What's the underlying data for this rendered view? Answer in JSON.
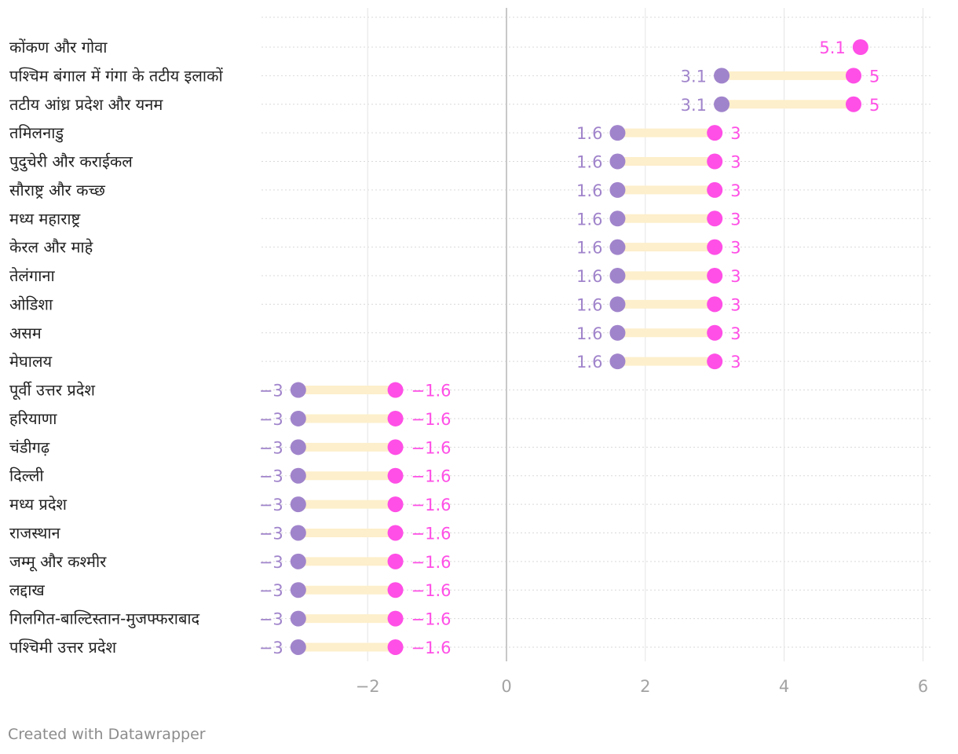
{
  "chart_data": {
    "type": "range-dot",
    "title": "",
    "xlabel": "",
    "ylabel": "",
    "xlim": [
      -3.5,
      6.1
    ],
    "xticks": [
      -2,
      0,
      2,
      4,
      6
    ],
    "xtick_labels": [
      "−2",
      "0",
      "2",
      "4",
      "6"
    ],
    "series": [
      {
        "name": "low",
        "color": "#a084cb"
      },
      {
        "name": "high",
        "color": "#ff4fe6"
      }
    ],
    "bar_color": "#fdefcb",
    "rows": [
      {
        "label": "कोंकण और गोवा",
        "low": null,
        "high": 5.1,
        "low_label": "",
        "high_label": "5.1"
      },
      {
        "label": "पश्चिम बंगाल में गंगा के तटीय इलाकों",
        "low": 3.1,
        "high": 5,
        "low_label": "3.1",
        "high_label": "5"
      },
      {
        "label": "तटीय आंध्र प्रदेश और यनम",
        "low": 3.1,
        "high": 5,
        "low_label": "3.1",
        "high_label": "5"
      },
      {
        "label": "तमिलनाडु",
        "low": 1.6,
        "high": 3,
        "low_label": "1.6",
        "high_label": "3"
      },
      {
        "label": "पुदुचेरी और कराईकल",
        "low": 1.6,
        "high": 3,
        "low_label": "1.6",
        "high_label": "3"
      },
      {
        "label": "सौराष्ट्र और कच्छ",
        "low": 1.6,
        "high": 3,
        "low_label": "1.6",
        "high_label": "3"
      },
      {
        "label": "मध्य महाराष्ट्र",
        "low": 1.6,
        "high": 3,
        "low_label": "1.6",
        "high_label": "3"
      },
      {
        "label": "केरल और माहे",
        "low": 1.6,
        "high": 3,
        "low_label": "1.6",
        "high_label": "3"
      },
      {
        "label": "तेलंगाना",
        "low": 1.6,
        "high": 3,
        "low_label": "1.6",
        "high_label": "3"
      },
      {
        "label": "ओडिशा",
        "low": 1.6,
        "high": 3,
        "low_label": "1.6",
        "high_label": "3"
      },
      {
        "label": "असम",
        "low": 1.6,
        "high": 3,
        "low_label": "1.6",
        "high_label": "3"
      },
      {
        "label": "मेघालय",
        "low": 1.6,
        "high": 3,
        "low_label": "1.6",
        "high_label": "3"
      },
      {
        "label": "पूर्वी उत्तर प्रदेश",
        "low": -3,
        "high": -1.6,
        "low_label": "−3",
        "high_label": "−1.6"
      },
      {
        "label": "हरियाणा",
        "low": -3,
        "high": -1.6,
        "low_label": "−3",
        "high_label": "−1.6"
      },
      {
        "label": "चंडीगढ़",
        "low": -3,
        "high": -1.6,
        "low_label": "−3",
        "high_label": "−1.6"
      },
      {
        "label": "दिल्ली",
        "low": -3,
        "high": -1.6,
        "low_label": "−3",
        "high_label": "−1.6"
      },
      {
        "label": "मध्य प्रदेश",
        "low": -3,
        "high": -1.6,
        "low_label": "−3",
        "high_label": "−1.6"
      },
      {
        "label": "राजस्थान",
        "low": -3,
        "high": -1.6,
        "low_label": "−3",
        "high_label": "−1.6"
      },
      {
        "label": "जम्मू और कश्मीर",
        "low": -3,
        "high": -1.6,
        "low_label": "−3",
        "high_label": "−1.6"
      },
      {
        "label": "लद्दाख",
        "low": -3,
        "high": -1.6,
        "low_label": "−3",
        "high_label": "−1.6"
      },
      {
        "label": "गिलगित-बाल्टिस्तान-मुजफ्फराबाद",
        "low": -3,
        "high": -1.6,
        "low_label": "−3",
        "high_label": "−1.6"
      },
      {
        "label": "पश्चिमी उत्तर प्रदेश",
        "low": -3,
        "high": -1.6,
        "low_label": "−3",
        "high_label": "−1.6"
      }
    ]
  },
  "footer": {
    "credit": "Created with Datawrapper"
  }
}
